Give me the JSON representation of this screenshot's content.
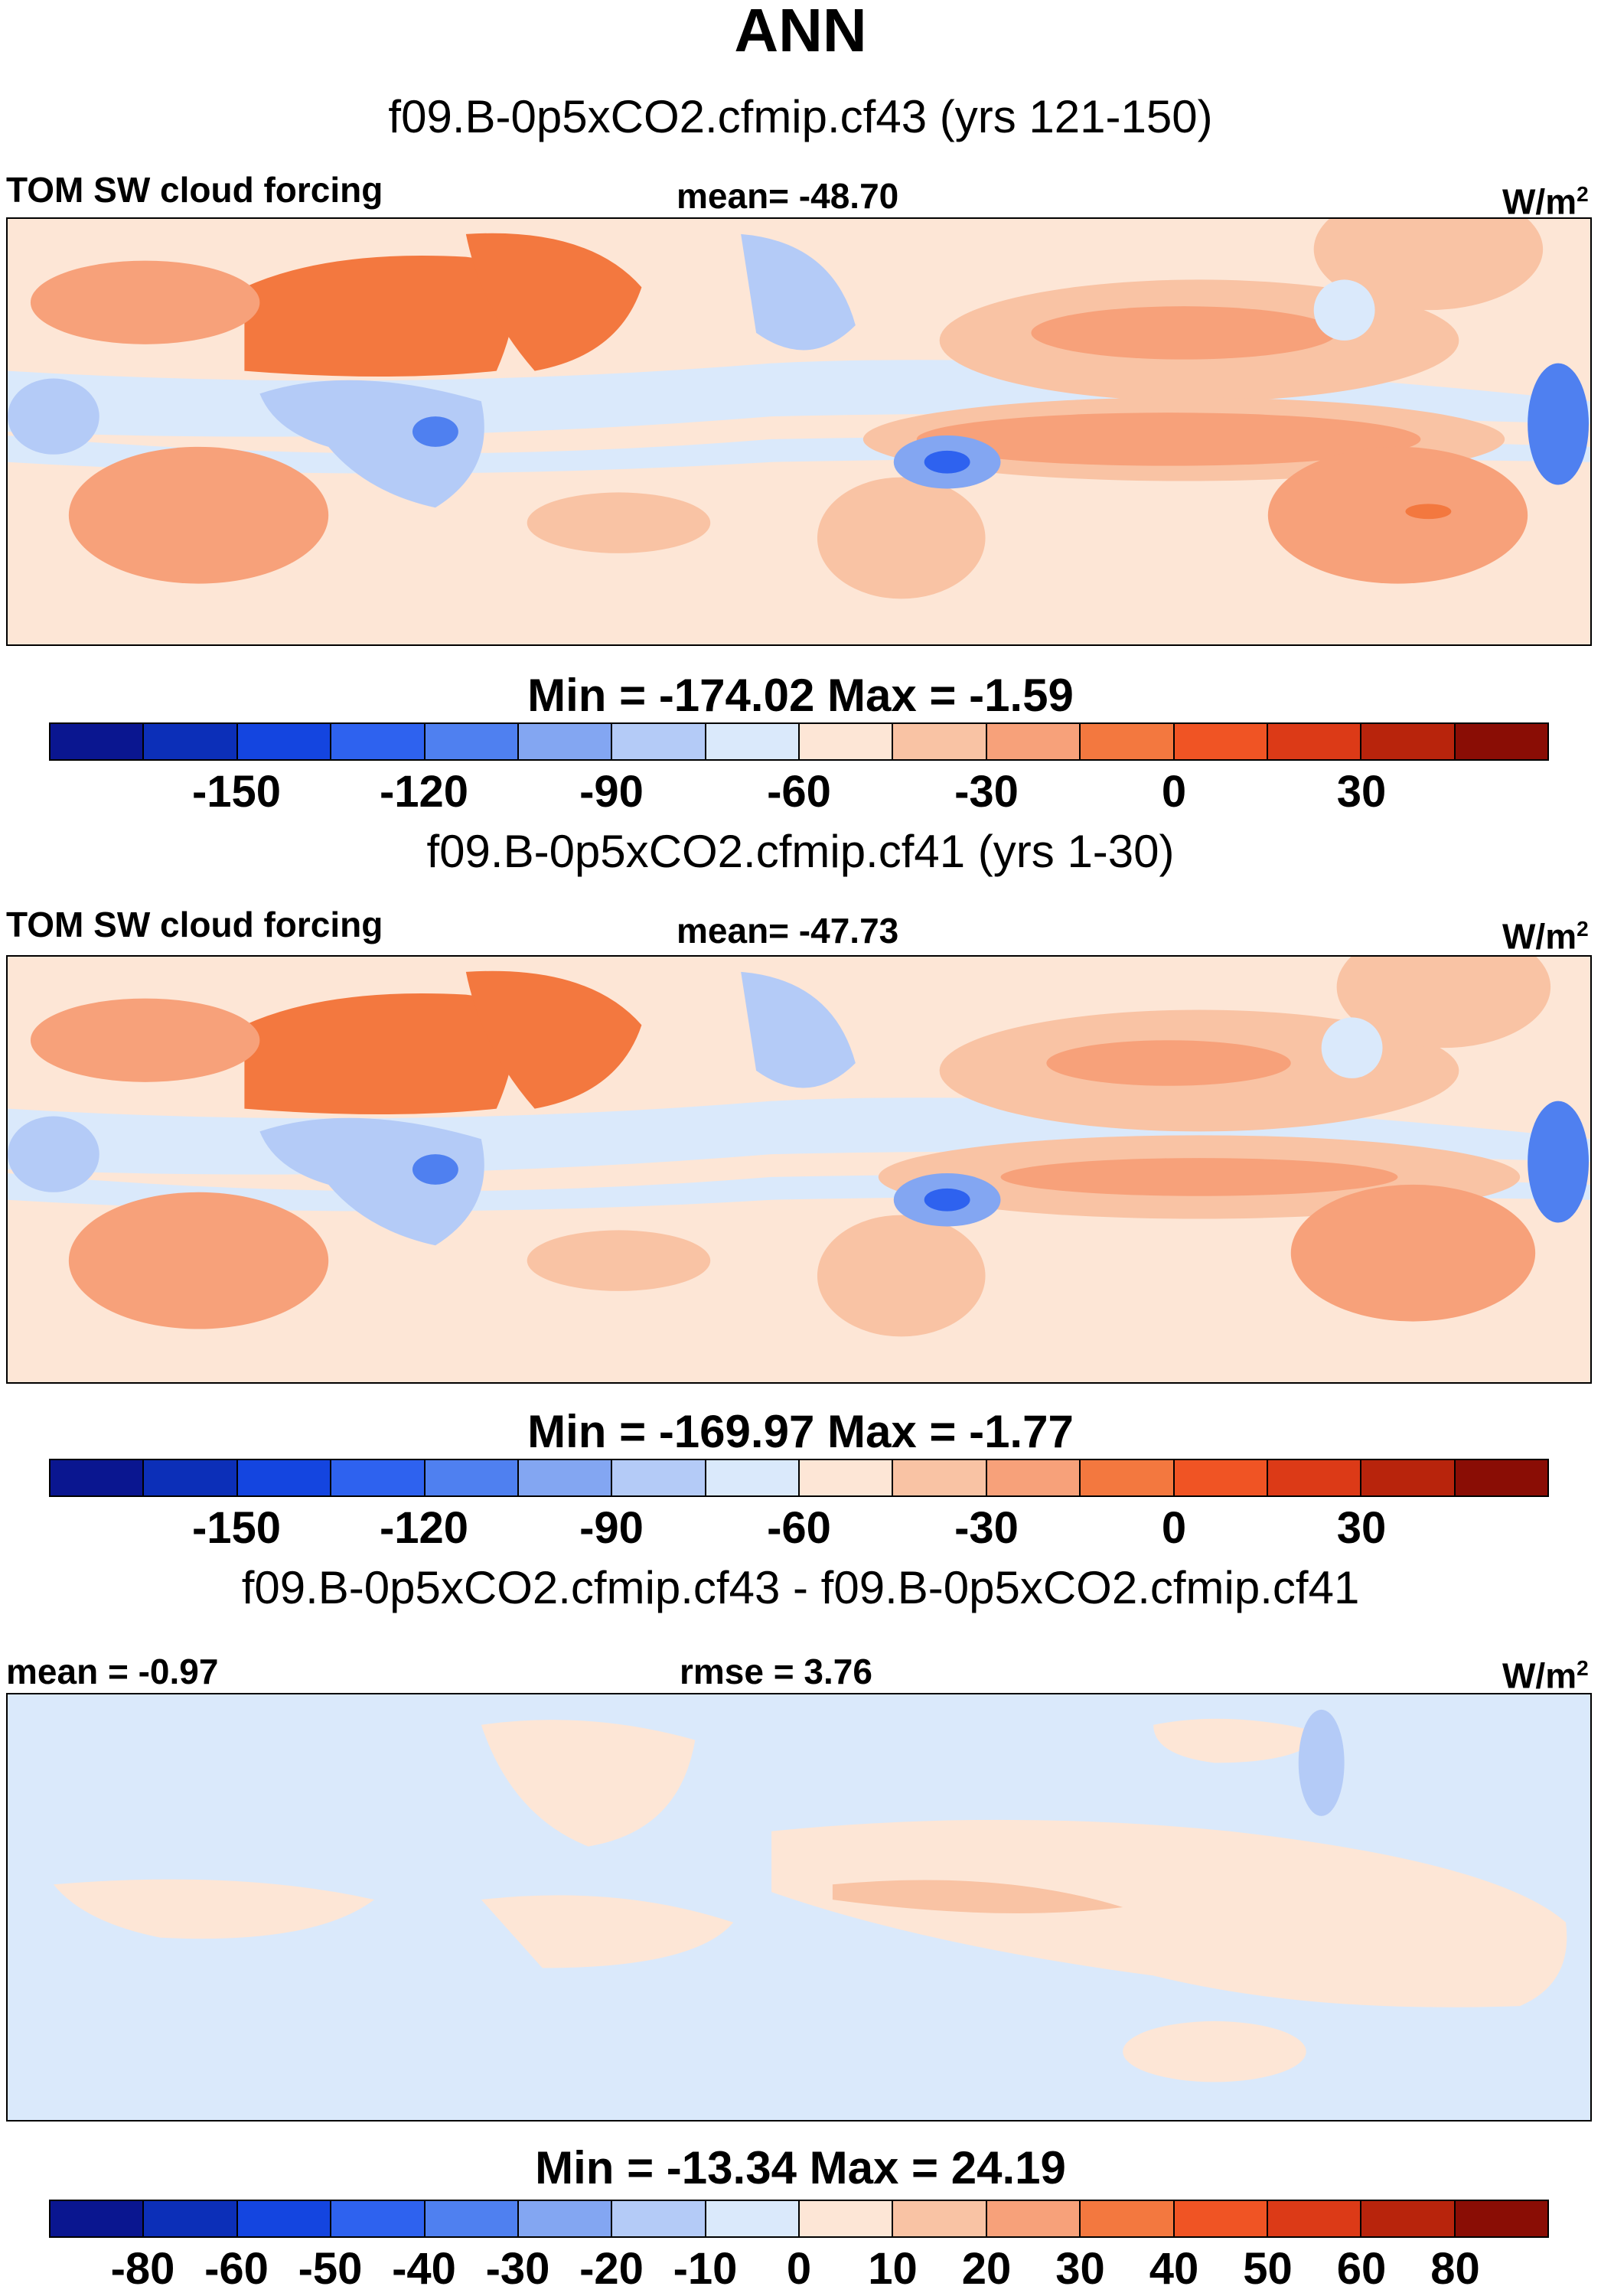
{
  "figure": {
    "title": "ANN"
  },
  "colorbars": {
    "main_colors": [
      "#0a1690",
      "#0c2fb8",
      "#1445e0",
      "#2e62ef",
      "#4f80f0",
      "#83a6f2",
      "#b4cbf7",
      "#dae9fb",
      "#fde6d6",
      "#f9c3a4",
      "#f7a17a",
      "#f3783f",
      "#f05424",
      "#dc3a17",
      "#b8240c",
      "#8a0d05"
    ],
    "diff_colors": [
      "#0a1690",
      "#0c2fb8",
      "#1445e0",
      "#2e62ef",
      "#4f80f0",
      "#83a6f2",
      "#b4cbf7",
      "#dae9fb",
      "#fde6d6",
      "#f9c3a4",
      "#f7a17a",
      "#f3783f",
      "#f05424",
      "#dc3a17",
      "#b8240c",
      "#8a0d05"
    ],
    "main_ticks": [
      "-150",
      "-120",
      "-90",
      "-60",
      "-30",
      "0",
      "30"
    ],
    "diff_ticks": [
      "-80",
      "-60",
      "-50",
      "-40",
      "-30",
      "-20",
      "-10",
      "0",
      "10",
      "20",
      "30",
      "40",
      "50",
      "60",
      "80"
    ]
  },
  "panels": [
    {
      "case": "f09.B-0p5xCO2.cfmip.cf43 (yrs 121-150)",
      "left_label": "TOM SW cloud forcing",
      "center_label": "mean= -48.70",
      "units": "W/m",
      "units_sup": "2",
      "minmax": "Min = -174.02 Max =  -1.59"
    },
    {
      "case": "f09.B-0p5xCO2.cfmip.cf41 (yrs 1-30)",
      "left_label": "TOM SW cloud forcing",
      "center_label": "mean= -47.73",
      "units": "W/m",
      "units_sup": "2",
      "minmax": "Min = -169.97 Max =  -1.77"
    },
    {
      "case": "f09.B-0p5xCO2.cfmip.cf43 - f09.B-0p5xCO2.cfmip.cf41",
      "left_label": "mean =  -0.97",
      "center_label": "rmse =   3.76",
      "units": "W/m",
      "units_sup": "2",
      "minmax": "Min = -13.34 Max =  24.19"
    }
  ]
}
